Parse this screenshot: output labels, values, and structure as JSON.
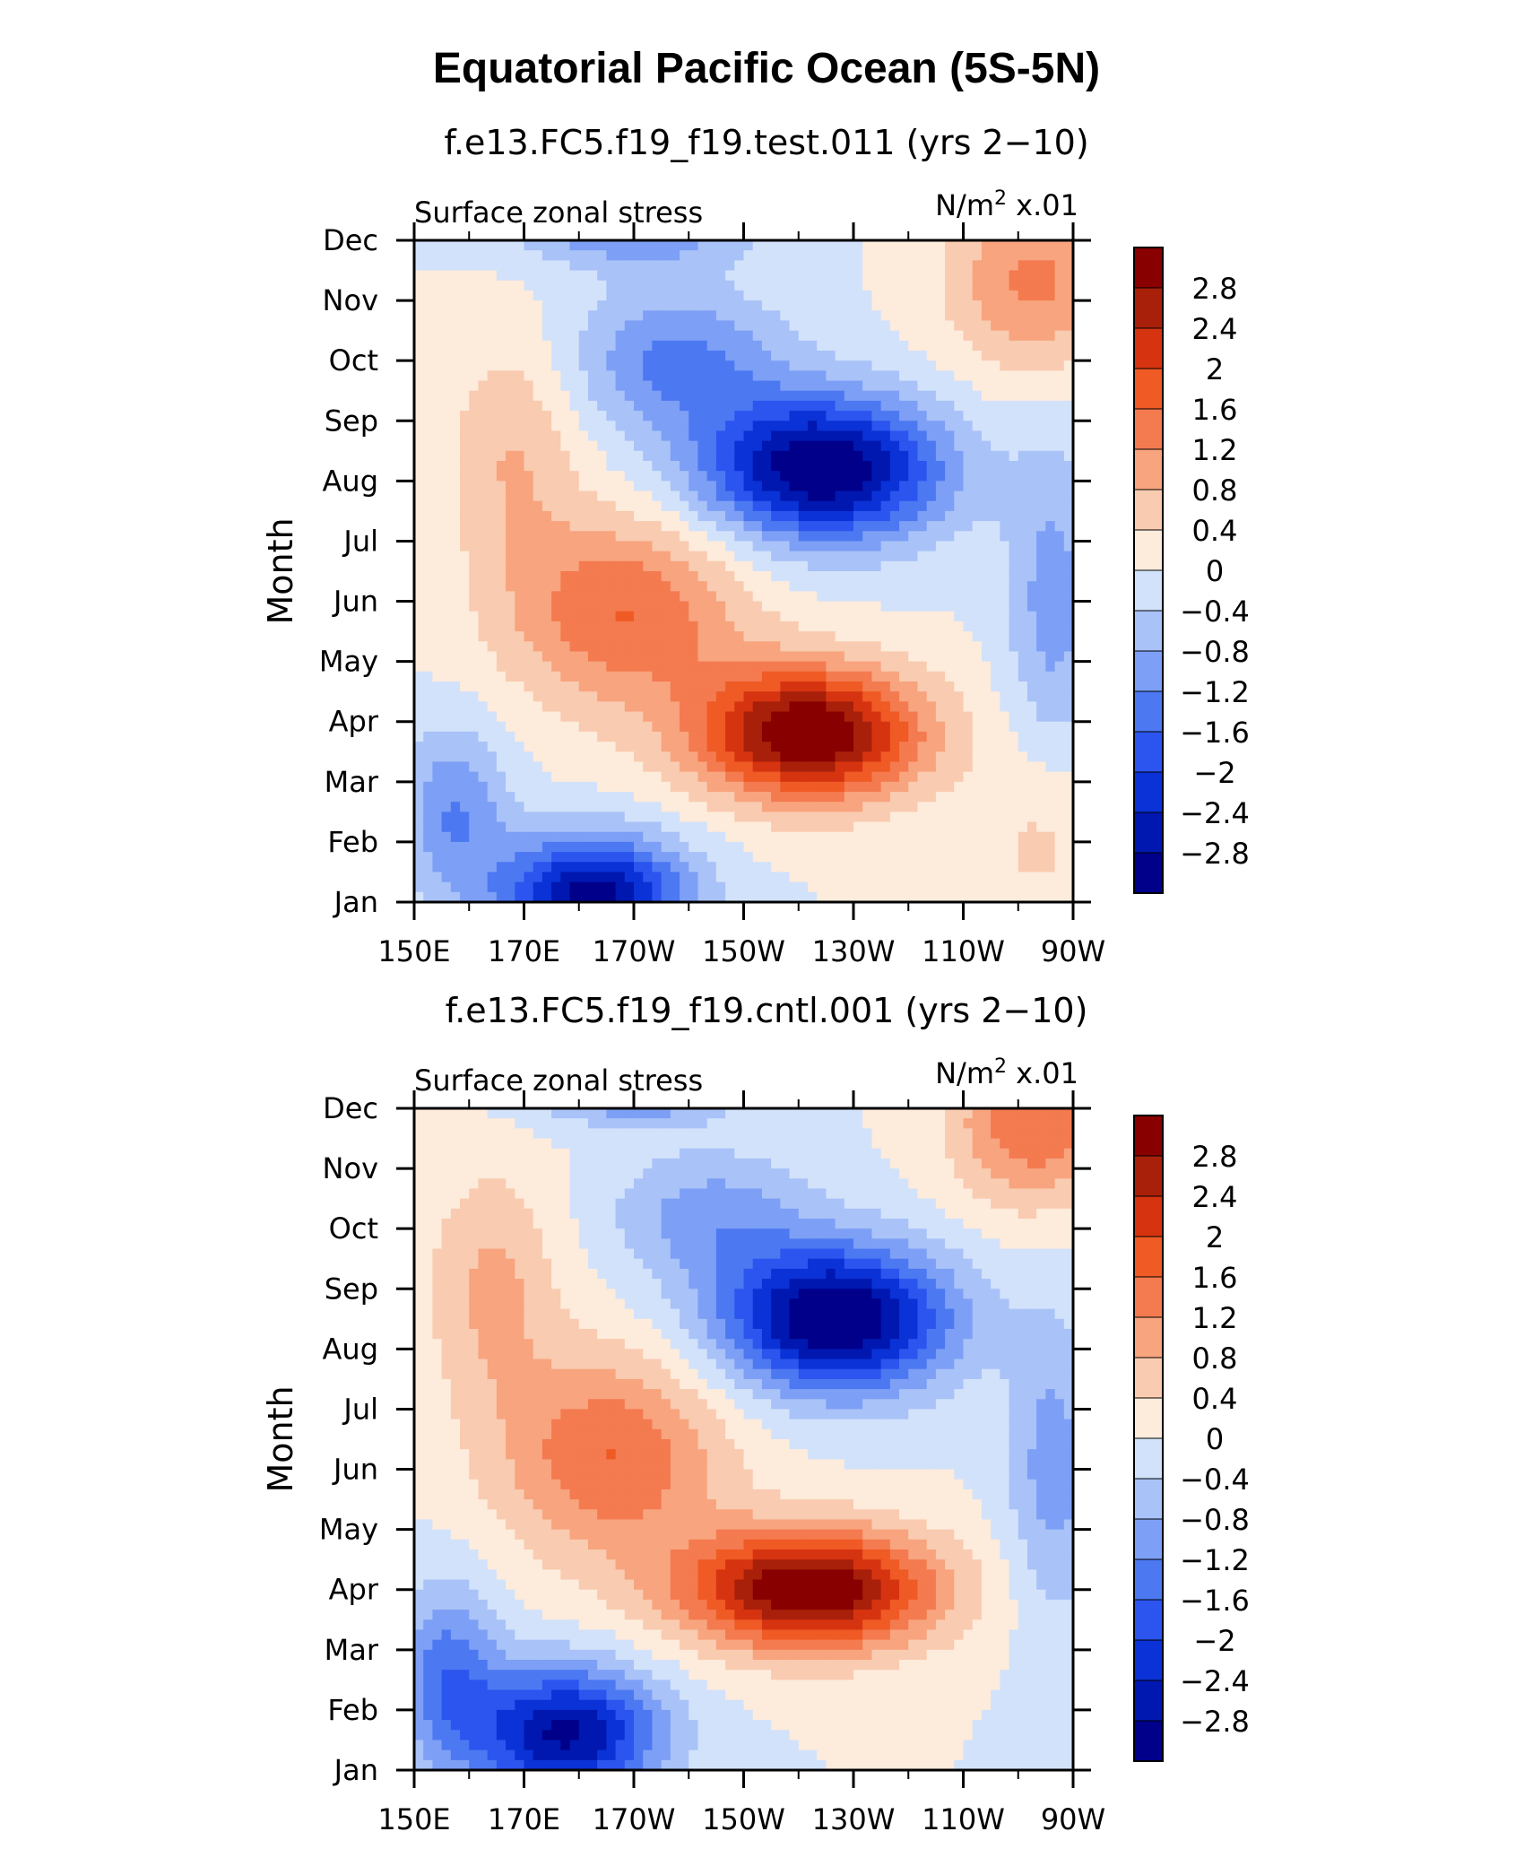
{
  "figure": {
    "title": "Equatorial Pacific Ocean (5S-5N)"
  },
  "colors": {
    "levels": [
      "#00008a",
      "#0018b0",
      "#0a32d6",
      "#2b55ee",
      "#4c78f2",
      "#7d9ff5",
      "#a9c2f8",
      "#d2e2fb",
      "#fdebdc",
      "#f9cbb0",
      "#f7a47f",
      "#f47a4f",
      "#ef5a25",
      "#d63410",
      "#a8200a",
      "#880000"
    ]
  },
  "chart_data": [
    {
      "type": "heatmap",
      "title": "f.e13.FC5.f19_f19.test.011 (yrs 2−10)",
      "left_string": "Surface zonal stress",
      "right_string": "N/m",
      "right_exp": "2",
      "right_suffix": " x.01",
      "ylabel": "Month",
      "x_ticklabels": [
        "150E",
        "170E",
        "170W",
        "150W",
        "130W",
        "110W",
        "90W"
      ],
      "y_ticklabels": [
        "Jan",
        "Feb",
        "Mar",
        "Apr",
        "May",
        "Jun",
        "Jul",
        "Aug",
        "Sep",
        "Oct",
        "Nov",
        "Dec"
      ],
      "colorbar_labels": [
        "2.8",
        "2.4",
        "2",
        "1.6",
        "1.2",
        "0.8",
        "0.4",
        "0",
        "−0.4",
        "−0.8",
        "−1.2",
        "−1.6",
        "−2",
        "−2.4",
        "−2.8"
      ],
      "contour_levels": [
        -2.8,
        -2.4,
        -2,
        -1.6,
        -1.2,
        -0.8,
        -0.4,
        0,
        0.4,
        0.8,
        1.2,
        1.6,
        2,
        2.4,
        2.8
      ],
      "x_range": [
        "150E",
        "90W"
      ],
      "y_range": [
        "Jan",
        "Dec"
      ],
      "features": [
        {
          "kind": "positive-max",
          "value": 3.0,
          "lon": "140W",
          "month": "Mar-Apr"
        },
        {
          "kind": "negative-min",
          "value": -3.0,
          "lon": "140W",
          "month": "Jul-Aug"
        },
        {
          "kind": "negative-min",
          "value": -2.6,
          "lon": "175W",
          "month": "Jan"
        }
      ]
    },
    {
      "type": "heatmap",
      "title": "f.e13.FC5.f19_f19.cntl.001 (yrs 2−10)",
      "left_string": "Surface zonal stress",
      "right_string": "N/m",
      "right_exp": "2",
      "right_suffix": " x.01",
      "ylabel": "Month",
      "x_ticklabels": [
        "150E",
        "170E",
        "170W",
        "150W",
        "130W",
        "110W",
        "90W"
      ],
      "y_ticklabels": [
        "Jan",
        "Feb",
        "Mar",
        "Apr",
        "May",
        "Jun",
        "Jul",
        "Aug",
        "Sep",
        "Oct",
        "Nov",
        "Dec"
      ],
      "colorbar_labels": [
        "2.8",
        "2.4",
        "2",
        "1.6",
        "1.2",
        "0.8",
        "0.4",
        "0",
        "−0.4",
        "−0.8",
        "−1.2",
        "−1.6",
        "−2",
        "−2.4",
        "−2.8"
      ],
      "contour_levels": [
        -2.8,
        -2.4,
        -2,
        -1.6,
        -1.2,
        -0.8,
        -0.4,
        0,
        0.4,
        0.8,
        1.2,
        1.6,
        2,
        2.4,
        2.8
      ],
      "x_range": [
        "150E",
        "90W"
      ],
      "y_range": [
        "Jan",
        "Dec"
      ],
      "features": [
        {
          "kind": "positive-max",
          "value": 3.0,
          "lon": "140W",
          "month": "Mar-Apr"
        },
        {
          "kind": "negative-min",
          "value": -3.0,
          "lon": "135W",
          "month": "Aug"
        },
        {
          "kind": "negative-min",
          "value": -2.6,
          "lon": "175W",
          "month": "Jan-Feb"
        }
      ]
    }
  ]
}
